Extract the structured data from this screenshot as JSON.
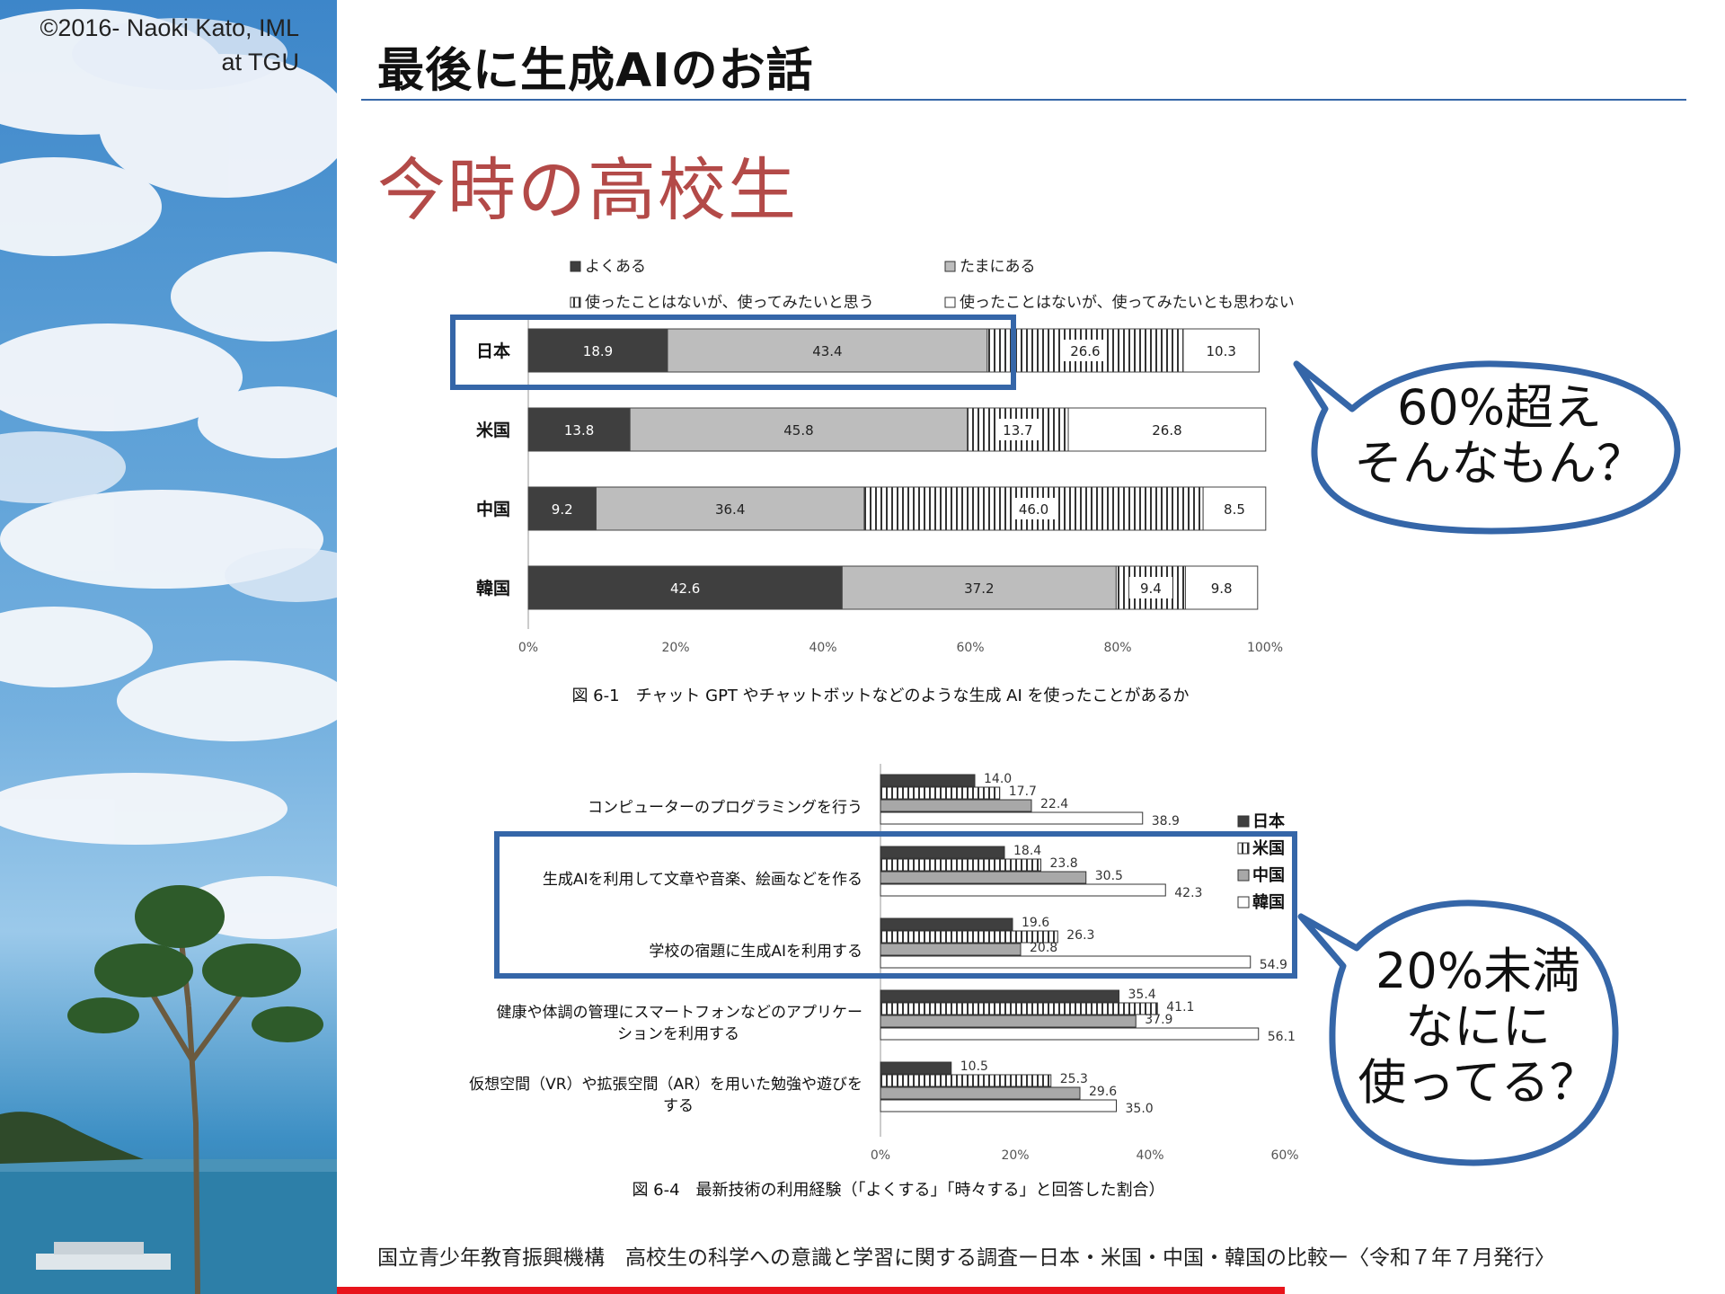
{
  "header": {
    "copyright_line1": "©2016- Naoki Kato, IML",
    "copyright_line2": "at TGU",
    "title": "最後に生成AIのお話",
    "subtitle": "今時の高校生"
  },
  "colors": {
    "accent_blue": "#3566a8",
    "subtitle_red": "#b34a48",
    "bottom_bar": "#e8141b",
    "dark_fill": "#3f3f3f",
    "gray_fill": "#bdbdbd",
    "mid_gray_fill": "#a8a8a8"
  },
  "callouts": [
    {
      "lines": [
        "60%超え",
        "そんなもん？"
      ]
    },
    {
      "lines": [
        "20%未満",
        "なにに",
        "使ってる？"
      ]
    }
  ],
  "source_note": "国立青少年教育振興機構　高校生の科学への意識と学習に関する調査ー日本・米国・中国・韓国の比較ー〈令和７年７月発行〉",
  "chart_data": [
    {
      "type": "bar",
      "orientation": "horizontal",
      "stacked": true,
      "caption": "図 6-1　チャット GPT やチャットボットなどのような生成 AI を使ったことがあるか",
      "categories": [
        "日本",
        "米国",
        "中国",
        "韓国"
      ],
      "series": [
        {
          "name": "よくある",
          "values": [
            18.9,
            13.8,
            9.2,
            42.6
          ],
          "pattern": "dark"
        },
        {
          "name": "たまにある",
          "values": [
            43.4,
            45.8,
            36.4,
            37.2
          ],
          "pattern": "gray"
        },
        {
          "name": "使ったことはないが、使ってみたいと思う",
          "values": [
            26.6,
            13.7,
            46.0,
            9.4
          ],
          "pattern": "vstripe"
        },
        {
          "name": "使ったことはないが、使ってみたいとも思わない",
          "values": [
            10.3,
            26.8,
            8.5,
            9.8
          ],
          "pattern": "white"
        }
      ],
      "xlim": [
        0,
        100
      ],
      "ticks": [
        "0%",
        "20%",
        "40%",
        "60%",
        "80%",
        "100%"
      ],
      "legend": "top",
      "highlight_category": "日本"
    },
    {
      "type": "bar",
      "orientation": "horizontal",
      "caption": "図 6-4　最新技術の利用経験（「よくする」「時々する」と回答した割合）",
      "categories": [
        [
          "コンピューターのプログラミングを行う"
        ],
        [
          "生成AIを利用して文章や音楽、絵画などを作る"
        ],
        [
          "学校の宿題に生成AIを利用する"
        ],
        [
          "健康や体調の管理にスマートフォンなどのアプリケー",
          "ションを利用する"
        ],
        [
          "仮想空間（VR）や拡張空間（AR）を用いた勉強や遊びを",
          "する"
        ]
      ],
      "series": [
        {
          "name": "日本",
          "values": [
            14.0,
            18.4,
            19.6,
            35.4,
            10.5
          ],
          "pattern": "dark"
        },
        {
          "name": "米国",
          "values": [
            17.7,
            23.8,
            26.3,
            41.1,
            25.3
          ],
          "pattern": "vstripe"
        },
        {
          "name": "中国",
          "values": [
            22.4,
            30.5,
            20.8,
            37.9,
            29.6
          ],
          "pattern": "gray"
        },
        {
          "name": "韓国",
          "values": [
            38.9,
            42.3,
            54.9,
            56.1,
            35.0
          ],
          "pattern": "white"
        }
      ],
      "xlim": [
        0,
        60
      ],
      "ticks": [
        "0%",
        "20%",
        "40%",
        "60%"
      ],
      "legend": "right",
      "highlight_categories": [
        1,
        2
      ]
    }
  ]
}
